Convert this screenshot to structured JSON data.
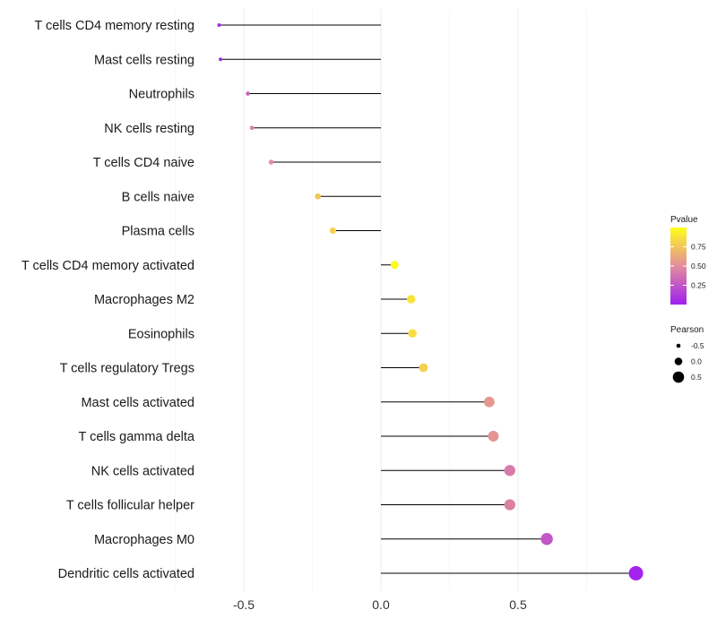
{
  "chart_data": {
    "type": "lollipop",
    "categories": [
      "T cells CD4 memory resting",
      "Mast cells resting",
      "Neutrophils",
      "NK cells resting",
      "T cells CD4 naive",
      "B cells naive",
      "Plasma cells",
      "T cells CD4 memory activated",
      "Macrophages M2",
      "Eosinophils",
      "T cells regulatory  Tregs ",
      "Mast cells activated",
      "T cells gamma delta",
      "NK cells activated",
      "T cells follicular helper",
      "Macrophages M0",
      "Dendritic cells activated"
    ],
    "pearson": [
      -0.59,
      -0.585,
      -0.485,
      -0.47,
      -0.4,
      -0.23,
      -0.175,
      0.05,
      0.11,
      0.115,
      0.155,
      0.395,
      0.41,
      0.47,
      0.47,
      0.605,
      0.93
    ],
    "pvalue": [
      0.03,
      0.04,
      0.3,
      0.45,
      0.5,
      0.75,
      0.8,
      0.97,
      0.88,
      0.85,
      0.8,
      0.55,
      0.53,
      0.42,
      0.45,
      0.25,
      0.02
    ],
    "xlim": [
      -0.72,
      0.95
    ],
    "xticks": [
      -0.5,
      0.0,
      0.5
    ],
    "xtick_labels": [
      "-0.5",
      "0.0",
      "0.5"
    ],
    "colors": {
      "low": "#a020f0",
      "mid": "#e38c9c",
      "high": "#ffff1a",
      "stem": "#000000",
      "grid": "#ebebeb"
    },
    "legend_color": {
      "title": "Pvalue",
      "range": [
        0.0,
        1.0
      ],
      "ticks": [
        0.75,
        0.5,
        0.25
      ],
      "tick_labels": [
        "0.75",
        "0.50",
        "0.25"
      ]
    },
    "legend_size": {
      "title": "Pearson",
      "values": [
        -0.5,
        0.0,
        0.5
      ],
      "labels": [
        "-0.5",
        "0.0",
        "0.5"
      ]
    }
  }
}
